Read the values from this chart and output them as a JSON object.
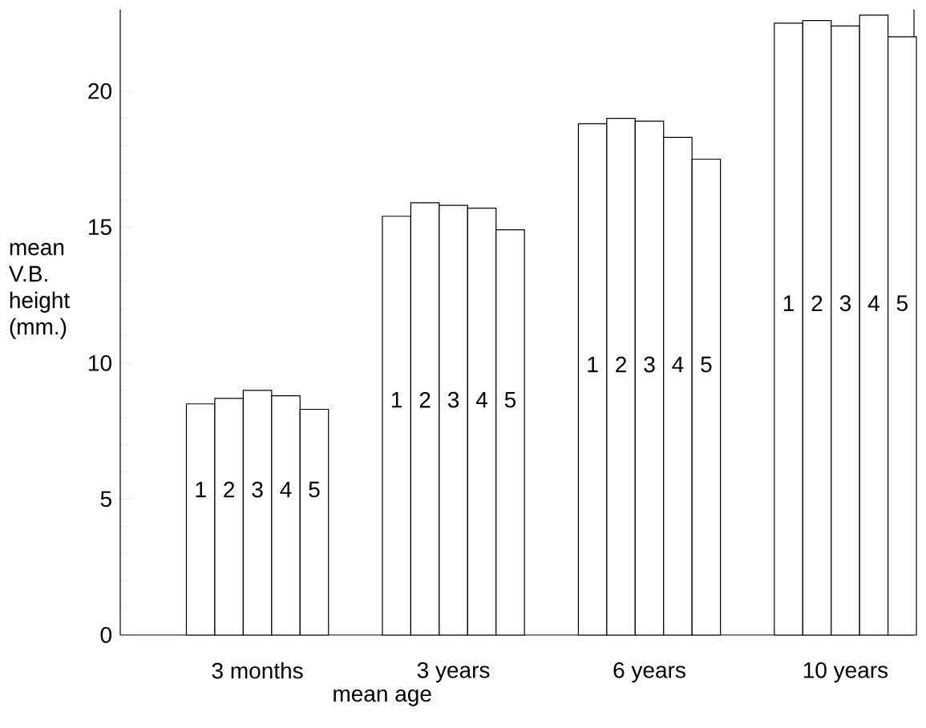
{
  "chart_data": {
    "type": "bar",
    "xlabel": "mean age",
    "ylabel": "mean V.B. height (mm.)",
    "categories": [
      "3 months",
      "3 years",
      "6 years",
      "10 years"
    ],
    "series": [
      {
        "name": "1",
        "color": "#ffffff",
        "values": [
          8.5,
          15.4,
          18.8,
          22.5
        ]
      },
      {
        "name": "2",
        "color": "#ffffff",
        "values": [
          8.7,
          15.9,
          19.0,
          22.6
        ]
      },
      {
        "name": "3",
        "color": "#ffffff",
        "values": [
          9.0,
          15.8,
          18.9,
          22.4
        ]
      },
      {
        "name": "4",
        "color": "#ffffff",
        "values": [
          8.8,
          15.7,
          18.3,
          22.8
        ]
      },
      {
        "name": "5",
        "color": "#ffffff",
        "values": [
          8.3,
          14.9,
          17.5,
          22.0
        ]
      }
    ],
    "ylim": [
      0,
      23
    ],
    "yticks": [
      0,
      5,
      10,
      15,
      20
    ]
  }
}
